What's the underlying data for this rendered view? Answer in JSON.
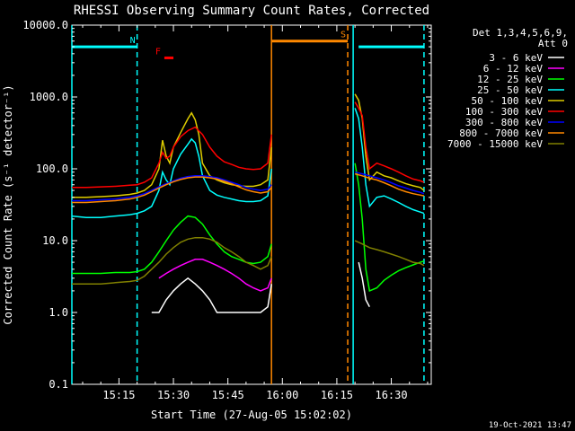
{
  "chart_data": {
    "type": "line",
    "title": "RHESSI Observing Summary Count Rates, Corrected",
    "ylabel": "Corrected Count Rate (s⁻¹ detector⁻¹)",
    "xlabel": "Start Time (27-Aug-05 15:02:02)",
    "y_scale": "log",
    "ylim": [
      0.1,
      10000
    ],
    "xlim": [
      "15:02:02",
      "16:41:00"
    ],
    "y_ticks": [
      {
        "value": 0.1,
        "label": "0.1"
      },
      {
        "value": 1,
        "label": "1.0"
      },
      {
        "value": 10,
        "label": "10.0"
      },
      {
        "value": 100,
        "label": "100.0"
      },
      {
        "value": 1000,
        "label": "1000.0"
      },
      {
        "value": 10000,
        "label": "10000.0"
      }
    ],
    "x_ticks": [
      {
        "value": "15:15",
        "label": "15:15"
      },
      {
        "value": "15:30",
        "label": "15:30"
      },
      {
        "value": "15:45",
        "label": "15:45"
      },
      {
        "value": "16:00",
        "label": "16:00"
      },
      {
        "value": "16:15",
        "label": "16:15"
      },
      {
        "value": "16:30",
        "label": "16:30"
      }
    ],
    "legend_header": [
      "Det 1,3,4,5,6,9,",
      "Att 0"
    ],
    "legend_position": "right",
    "footer_date": "19-Oct-2021 13:47",
    "flags": [
      {
        "label": "N",
        "color": "#00ffff",
        "segments": [
          [
            "15:02:02",
            "15:20:00",
            5000
          ],
          [
            "16:21:00",
            "16:39:00",
            5000
          ]
        ]
      },
      {
        "label": "F",
        "color": "#ff0000",
        "segments": [
          [
            "15:27:30",
            "15:30:00",
            3500
          ]
        ]
      },
      {
        "label": "S",
        "color": "#ff8800",
        "segments": [
          [
            "15:57:00",
            "16:18:00",
            6000
          ]
        ]
      }
    ],
    "vlines": [
      {
        "x": "15:02:02",
        "color": "#00ffff",
        "style": "solid"
      },
      {
        "x": "15:20:00",
        "color": "#00ffff",
        "style": "dashed"
      },
      {
        "x": "15:57:00",
        "color": "#ff8800",
        "style": "solid"
      },
      {
        "x": "16:18:00",
        "color": "#ff8800",
        "style": "dashed"
      },
      {
        "x": "16:19:30",
        "color": "#00ffff",
        "style": "solid"
      },
      {
        "x": "16:39:00",
        "color": "#00ffff",
        "style": "dashed"
      }
    ],
    "series": [
      {
        "name": "3 - 6 keV",
        "color": "#ffffff",
        "x": [
          "15:24",
          "15:26",
          "15:28",
          "15:30",
          "15:32",
          "15:34",
          "15:36",
          "15:38",
          "15:40",
          "15:42",
          "15:44",
          "15:46",
          "15:48",
          "15:50",
          "15:52",
          "15:54",
          "15:56",
          "15:57",
          "16:21",
          "16:22",
          "16:23",
          "16:24"
        ],
        "y": [
          1,
          1,
          1.5,
          2,
          2.5,
          3,
          2.5,
          2,
          1.5,
          1,
          1,
          1,
          1,
          1,
          1,
          1,
          1.2,
          2.5,
          5,
          3,
          1.5,
          1.2
        ]
      },
      {
        "name": "6 - 12 keV",
        "color": "#ff00ff",
        "x": [
          "15:26",
          "15:28",
          "15:30",
          "15:32",
          "15:34",
          "15:36",
          "15:38",
          "15:40",
          "15:42",
          "15:44",
          "15:46",
          "15:48",
          "15:50",
          "15:52",
          "15:54",
          "15:56",
          "15:57"
        ],
        "y": [
          3,
          3.5,
          4,
          4.5,
          5,
          5.5,
          5.5,
          5,
          4.5,
          4,
          3.5,
          3,
          2.5,
          2.2,
          2,
          2.2,
          3
        ]
      },
      {
        "name": "12 - 25 keV",
        "color": "#00ff00",
        "x": [
          "15:02",
          "15:06",
          "15:10",
          "15:14",
          "15:18",
          "15:20",
          "15:22",
          "15:24",
          "15:26",
          "15:28",
          "15:30",
          "15:32",
          "15:34",
          "15:36",
          "15:38",
          "15:40",
          "15:42",
          "15:44",
          "15:46",
          "15:48",
          "15:50",
          "15:52",
          "15:54",
          "15:56",
          "15:57",
          "16:20",
          "16:21",
          "16:22",
          "16:23",
          "16:24",
          "16:26",
          "16:28",
          "16:30",
          "16:32",
          "16:34",
          "16:36",
          "16:38",
          "16:39"
        ],
        "y": [
          3.5,
          3.5,
          3.5,
          3.6,
          3.6,
          3.7,
          4,
          5,
          7,
          10,
          14,
          18,
          22,
          21,
          17,
          12,
          9,
          7,
          6,
          5.5,
          5,
          4.8,
          5,
          6,
          9,
          120,
          60,
          20,
          4,
          2,
          2.2,
          2.8,
          3.3,
          3.8,
          4.2,
          4.6,
          5,
          5.2
        ]
      },
      {
        "name": "25 - 50 keV",
        "color": "#00ffff",
        "x": [
          "15:02",
          "15:06",
          "15:10",
          "15:14",
          "15:18",
          "15:20",
          "15:22",
          "15:24",
          "15:26",
          "15:27",
          "15:28",
          "15:29",
          "15:30",
          "15:32",
          "15:34",
          "15:35",
          "15:36",
          "15:37",
          "15:38",
          "15:40",
          "15:42",
          "15:44",
          "15:46",
          "15:48",
          "15:50",
          "15:52",
          "15:54",
          "15:56",
          "15:57",
          "16:20",
          "16:21",
          "16:22",
          "16:23",
          "16:24",
          "16:26",
          "16:28",
          "16:30",
          "16:32",
          "16:34",
          "16:36",
          "16:38",
          "16:39"
        ],
        "y": [
          22,
          21,
          21,
          22,
          23,
          24,
          26,
          30,
          50,
          90,
          70,
          60,
          100,
          160,
          220,
          260,
          230,
          150,
          80,
          50,
          43,
          40,
          38,
          36,
          35,
          35,
          36,
          42,
          100,
          700,
          500,
          200,
          60,
          30,
          40,
          42,
          38,
          34,
          30,
          27,
          25,
          24
        ]
      },
      {
        "name": "50 - 100 keV",
        "color": "#ddcc00",
        "x": [
          "15:02",
          "15:06",
          "15:10",
          "15:14",
          "15:18",
          "15:20",
          "15:22",
          "15:24",
          "15:26",
          "15:27",
          "15:28",
          "15:29",
          "15:30",
          "15:32",
          "15:34",
          "15:35",
          "15:36",
          "15:37",
          "15:38",
          "15:40",
          "15:42",
          "15:44",
          "15:46",
          "15:48",
          "15:50",
          "15:52",
          "15:54",
          "15:56",
          "15:57",
          "16:20",
          "16:21",
          "16:22",
          "16:23",
          "16:24",
          "16:26",
          "16:28",
          "16:30",
          "16:32",
          "16:34",
          "16:36",
          "16:38",
          "16:39"
        ],
        "y": [
          40,
          40,
          41,
          42,
          44,
          46,
          50,
          60,
          100,
          250,
          150,
          120,
          200,
          320,
          500,
          600,
          480,
          300,
          120,
          80,
          70,
          64,
          60,
          58,
          57,
          57,
          60,
          70,
          200,
          1100,
          900,
          500,
          150,
          70,
          90,
          80,
          75,
          68,
          62,
          58,
          55,
          50
        ]
      },
      {
        "name": "100 - 300 keV",
        "color": "#ff0000",
        "x": [
          "15:02",
          "15:06",
          "15:10",
          "15:14",
          "15:18",
          "15:20",
          "15:22",
          "15:24",
          "15:26",
          "15:27",
          "15:28",
          "15:29",
          "15:30",
          "15:32",
          "15:34",
          "15:36",
          "15:38",
          "15:40",
          "15:42",
          "15:44",
          "15:46",
          "15:48",
          "15:50",
          "15:52",
          "15:54",
          "15:56",
          "15:57",
          "16:20",
          "16:21",
          "16:22",
          "16:23",
          "16:24",
          "16:26",
          "16:28",
          "16:30",
          "16:32",
          "16:34",
          "16:36",
          "16:38",
          "16:39"
        ],
        "y": [
          55,
          55,
          56,
          57,
          59,
          60,
          65,
          75,
          120,
          170,
          140,
          150,
          200,
          280,
          340,
          380,
          300,
          200,
          150,
          125,
          115,
          105,
          100,
          98,
          100,
          120,
          300,
          850,
          700,
          550,
          200,
          100,
          120,
          110,
          100,
          90,
          80,
          72,
          68,
          65
        ]
      },
      {
        "name": "300 - 800 keV",
        "color": "#0000ff",
        "x": [
          "15:02",
          "15:06",
          "15:10",
          "15:14",
          "15:18",
          "15:20",
          "15:22",
          "15:24",
          "15:26",
          "15:28",
          "15:30",
          "15:32",
          "15:34",
          "15:36",
          "15:38",
          "15:40",
          "15:42",
          "15:44",
          "15:46",
          "15:48",
          "15:50",
          "15:52",
          "15:54",
          "15:56",
          "15:57",
          "16:20",
          "16:22",
          "16:24",
          "16:26",
          "16:28",
          "16:30",
          "16:32",
          "16:34",
          "16:36",
          "16:38",
          "16:39"
        ],
        "y": [
          36,
          36,
          37,
          38,
          40,
          42,
          45,
          50,
          56,
          62,
          68,
          74,
          78,
          80,
          80,
          78,
          75,
          70,
          65,
          60,
          55,
          52,
          50,
          52,
          60,
          90,
          85,
          80,
          75,
          70,
          64,
          58,
          54,
          50,
          47,
          45
        ]
      },
      {
        "name": "800 - 7000 keV",
        "color": "#ff8800",
        "x": [
          "15:02",
          "15:06",
          "15:10",
          "15:14",
          "15:18",
          "15:20",
          "15:22",
          "15:24",
          "15:26",
          "15:28",
          "15:30",
          "15:32",
          "15:34",
          "15:36",
          "15:38",
          "15:40",
          "15:42",
          "15:44",
          "15:46",
          "15:48",
          "15:50",
          "15:52",
          "15:54",
          "15:56",
          "15:57",
          "16:20",
          "16:22",
          "16:24",
          "16:26",
          "16:28",
          "16:30",
          "16:32",
          "16:34",
          "16:36",
          "16:38",
          "16:39"
        ],
        "y": [
          34,
          34,
          35,
          36,
          38,
          40,
          43,
          48,
          54,
          60,
          66,
          71,
          75,
          77,
          77,
          75,
          72,
          67,
          62,
          56,
          51,
          48,
          46,
          48,
          55,
          85,
          80,
          74,
          70,
          64,
          58,
          52,
          48,
          45,
          43,
          42
        ]
      },
      {
        "name": "7000 - 15000 keV",
        "color": "#808000",
        "x": [
          "15:02",
          "15:06",
          "15:10",
          "15:14",
          "15:18",
          "15:20",
          "15:22",
          "15:24",
          "15:26",
          "15:28",
          "15:30",
          "15:32",
          "15:34",
          "15:36",
          "15:38",
          "15:40",
          "15:42",
          "15:44",
          "15:46",
          "15:48",
          "15:50",
          "15:52",
          "15:54",
          "15:56",
          "15:57",
          "16:20",
          "16:22",
          "16:24",
          "16:26",
          "16:28",
          "16:30",
          "16:32",
          "16:34",
          "16:36",
          "16:38",
          "16:39"
        ],
        "y": [
          2.5,
          2.5,
          2.5,
          2.6,
          2.7,
          2.8,
          3.2,
          4,
          5,
          6.5,
          8,
          9.5,
          10.5,
          11,
          11,
          10.5,
          9.5,
          8,
          7,
          6,
          5,
          4.5,
          4,
          4.5,
          6,
          10,
          9,
          8,
          7.5,
          7,
          6.5,
          6,
          5.5,
          5,
          4.8,
          4.5
        ]
      }
    ]
  }
}
